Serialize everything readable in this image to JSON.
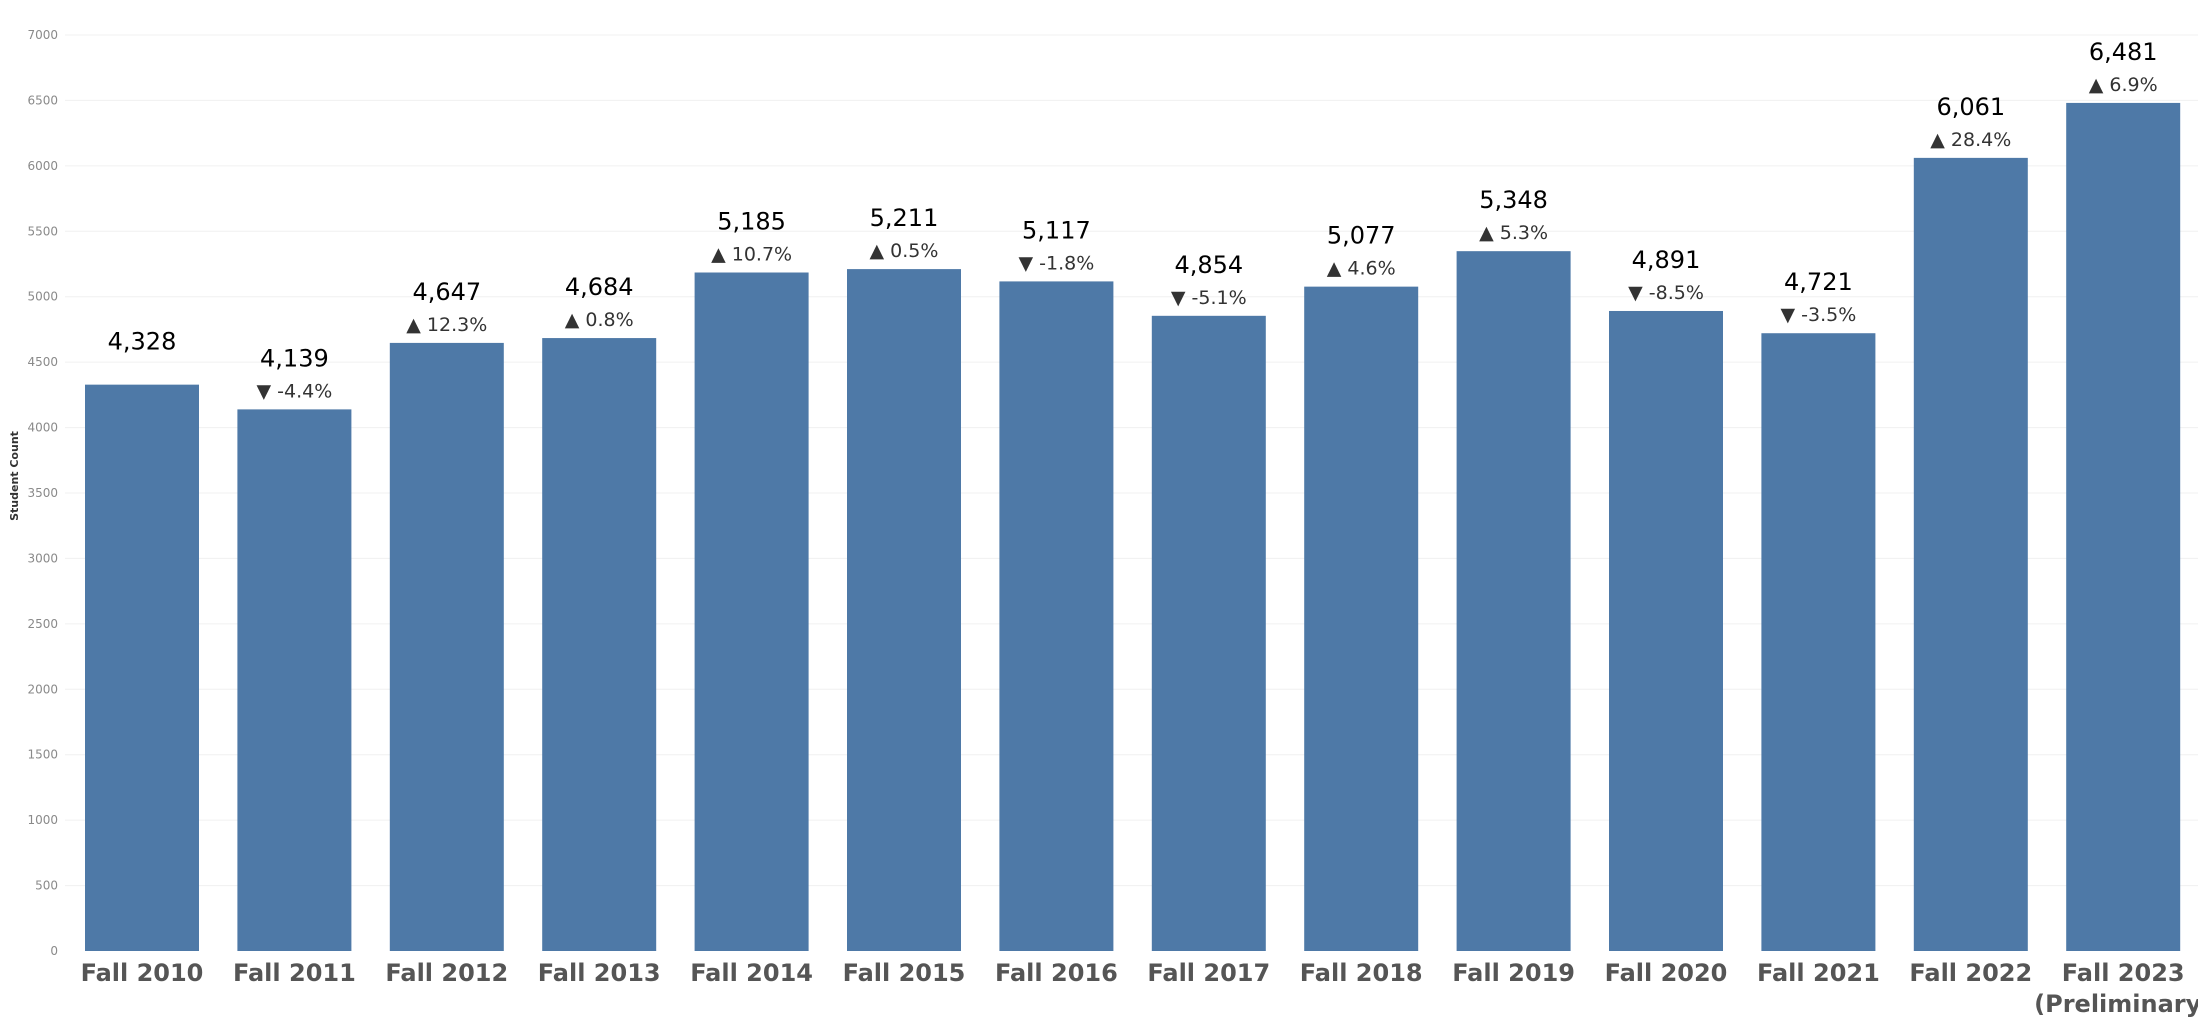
{
  "chart_data": {
    "type": "bar",
    "title": "",
    "xlabel": "",
    "ylabel": "Student Count",
    "ylim": [
      0,
      7000
    ],
    "y_ticks": [
      0,
      500,
      1000,
      1500,
      2000,
      2500,
      3000,
      3500,
      4000,
      4500,
      5000,
      5500,
      6000,
      6500,
      7000
    ],
    "grid": true,
    "legend": "none",
    "bar_color": "#4e79a7",
    "categories": [
      [
        "Fall 2010"
      ],
      [
        "Fall 2011"
      ],
      [
        "Fall 2012"
      ],
      [
        "Fall 2013"
      ],
      [
        "Fall 2014"
      ],
      [
        "Fall 2015"
      ],
      [
        "Fall 2016"
      ],
      [
        "Fall 2017"
      ],
      [
        "Fall 2018"
      ],
      [
        "Fall 2019"
      ],
      [
        "Fall 2020"
      ],
      [
        "Fall 2021"
      ],
      [
        "Fall 2022"
      ],
      [
        "Fall 2023",
        "(Preliminary)"
      ]
    ],
    "values": [
      4328,
      4139,
      4647,
      4684,
      5185,
      5211,
      5117,
      4854,
      5077,
      5348,
      4891,
      4721,
      6061,
      6481
    ],
    "value_labels": [
      "4,328",
      "4,139",
      "4,647",
      "4,684",
      "5,185",
      "5,211",
      "5,117",
      "4,854",
      "5,077",
      "5,348",
      "4,891",
      "4,721",
      "6,061",
      "6,481"
    ],
    "change_labels": [
      "",
      "▼ -4.4%",
      "▲ 12.3%",
      "▲ 0.8%",
      "▲ 10.7%",
      "▲ 0.5%",
      "▼ -1.8%",
      "▼ -5.1%",
      "▲ 4.6%",
      "▲ 5.3%",
      "▼ -8.5%",
      "▼ -3.5%",
      "▲ 28.4%",
      "▲ 6.9%"
    ]
  }
}
